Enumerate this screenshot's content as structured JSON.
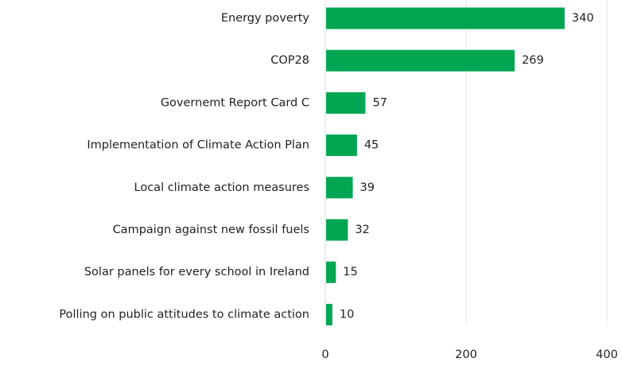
{
  "chart_data": {
    "type": "bar",
    "orientation": "horizontal",
    "categories": [
      "Energy poverty",
      "COP28",
      "Governemt Report Card C",
      "Implementation of Climate Action Plan",
      "Local climate action measures",
      "Campaign against new fossil fuels",
      "Solar panels for every school in Ireland",
      "Polling on public attitudes to climate action"
    ],
    "values": [
      340,
      269,
      57,
      45,
      39,
      32,
      15,
      10
    ],
    "xlim": [
      0,
      400
    ],
    "xticks": [
      0,
      200,
      400
    ],
    "title": "",
    "xlabel": "",
    "ylabel": "",
    "grid": true,
    "legend": "none",
    "bar_color": "#00a651",
    "grid_color": "#e6e6e6"
  }
}
